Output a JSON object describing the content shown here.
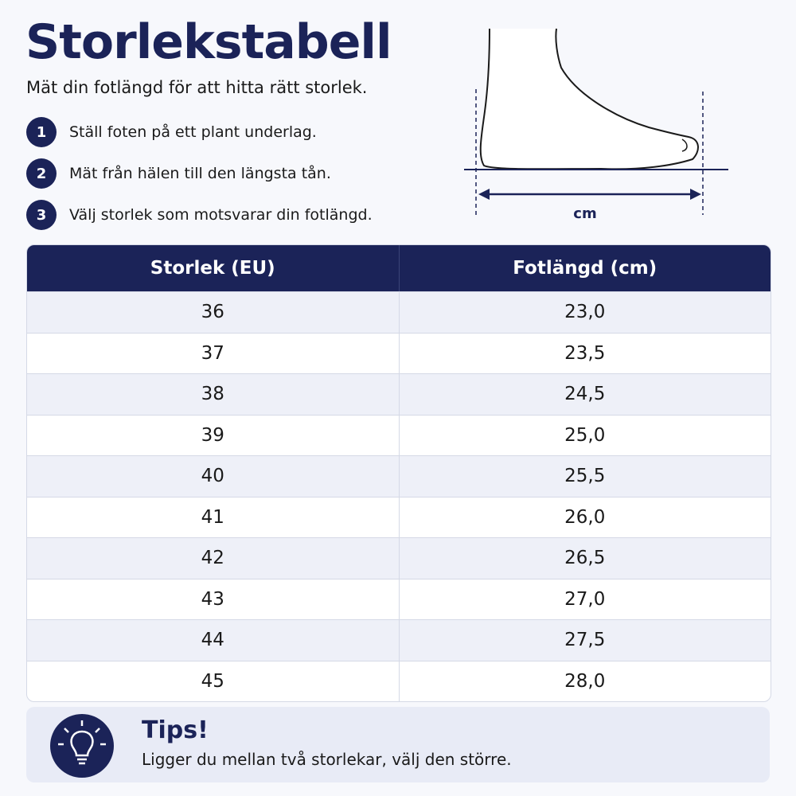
{
  "header": {
    "title": "Storlekstabell",
    "subtitle": "Mät din fotlängd för att hitta rätt storlek."
  },
  "steps": [
    {
      "number": "1",
      "text": "Ställ foten på ett plant underlag."
    },
    {
      "number": "2",
      "text": "Mät från hälen till den längsta tån."
    },
    {
      "number": "3",
      "text": "Välj storlek som motsvarar din fotlängd."
    }
  ],
  "diagram": {
    "label": "cm"
  },
  "table": {
    "headers": [
      "Storlek (EU)",
      "Fotlängd (cm)"
    ],
    "rows": [
      [
        "36",
        "23,0"
      ],
      [
        "37",
        "23,5"
      ],
      [
        "38",
        "24,5"
      ],
      [
        "39",
        "25,0"
      ],
      [
        "40",
        "25,5"
      ],
      [
        "41",
        "26,0"
      ],
      [
        "42",
        "26,5"
      ],
      [
        "43",
        "27,0"
      ],
      [
        "44",
        "27,5"
      ],
      [
        "45",
        "28,0"
      ]
    ]
  },
  "tips": {
    "title": "Tips!",
    "text": "Ligger du mellan två storlekar, välj den större."
  }
}
